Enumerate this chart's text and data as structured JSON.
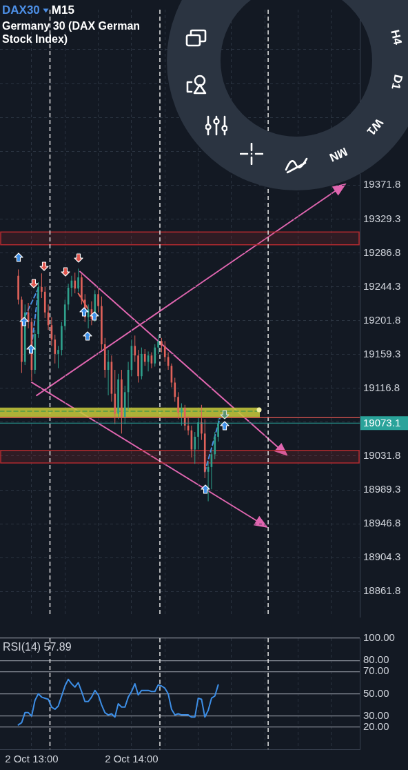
{
  "chart_data": [
    {
      "type": "candlestick",
      "title": "DAX30",
      "subtitle": "Germany 30 (DAX German Stock Index)",
      "annotations": [
        "M15",
        "H4",
        "D1",
        "W1",
        "MN"
      ],
      "series": [
        {
          "type": "candlestick",
          "x": [
            "--10-02T12:52",
            "--10-02T12:54",
            "--10-02T12:56",
            "--10-02T12:58",
            "--10-02T13:00",
            "--10-02T13:02",
            "--10-02T13:04",
            "--10-02T13:06",
            "--10-02T13:08",
            "--10-02T13:10",
            "--10-02T13:12",
            "--10-02T13:14",
            "--10-02T13:16",
            "--10-02T13:18",
            "--10-02T13:20",
            "--10-02T13:22",
            "--10-02T13:24",
            "--10-02T13:26",
            "--10-02T13:28",
            "--10-02T13:30",
            "--10-02T13:32",
            "--10-02T13:34",
            "--10-02T13:36",
            "--10-02T13:38",
            "--10-02T13:40",
            "--10-02T13:42",
            "--10-02T13:44",
            "--10-02T13:46",
            "--10-02T13:48",
            "--10-02T13:50",
            "--10-02T13:52",
            "--10-02T13:54",
            "--10-02T13:56",
            "--10-02T13:58",
            "--10-02T14:00",
            "--10-02T14:02",
            "--10-02T14:04",
            "--10-02T14:06",
            "--10-02T14:08",
            "--10-02T14:10",
            "--10-02T14:12",
            "--10-02T14:14",
            "--10-02T14:16",
            "--10-02T14:18",
            "--10-02T14:20",
            "--10-02T14:22",
            "--10-02T14:24",
            "--10-02T14:26",
            "--10-02T14:28",
            "--10-02T14:30",
            "--10-02T14:32",
            "--10-02T14:34",
            "--10-02T14:36",
            "--10-02T14:38",
            "--10-02T14:40",
            "--10-02T14:42",
            "--10-02T14:44",
            "--10-02T14:46",
            "--10-02T14:48",
            "--10-02T14:50",
            "--10-02T14:52"
          ],
          "ohlc": [
            [
              19258,
              19266,
              19222,
              19228
            ],
            [
              19228,
              19232,
              19136,
              19150
            ],
            [
              19150,
              19222,
              19146,
              19212
            ],
            [
              19212,
              19224,
              19192,
              19200
            ],
            [
              19200,
              19205,
              19126,
              19140
            ],
            [
              19140,
              19190,
              19135,
              19185
            ],
            [
              19185,
              19250,
              19180,
              19244
            ],
            [
              19244,
              19261,
              19230,
              19238
            ],
            [
              19238,
              19244,
              19205,
              19212
            ],
            [
              19212,
              19222,
              19190,
              19196
            ],
            [
              19196,
              19206,
              19170,
              19178
            ],
            [
              19178,
              19184,
              19148,
              19160
            ],
            [
              19160,
              19170,
              19142,
              19165
            ],
            [
              19165,
              19200,
              19158,
              19195
            ],
            [
              19195,
              19228,
              19190,
              19222
            ],
            [
              19222,
              19248,
              19215,
              19243
            ],
            [
              19243,
              19258,
              19232,
              19252
            ],
            [
              19252,
              19262,
              19236,
              19242
            ],
            [
              19242,
              19267,
              19238,
              19256
            ],
            [
              19256,
              19260,
              19222,
              19228
            ],
            [
              19228,
              19235,
              19200,
              19206
            ],
            [
              19206,
              19222,
              19192,
              19216
            ],
            [
              19216,
              19226,
              19196,
              19204
            ],
            [
              19204,
              19240,
              19200,
              19235
            ],
            [
              19235,
              19242,
              19212,
              19220
            ],
            [
              19220,
              19232,
              19165,
              19172
            ],
            [
              19172,
              19180,
              19130,
              19140
            ],
            [
              19140,
              19165,
              19108,
              19150
            ],
            [
              19150,
              19158,
              19100,
              19110
            ],
            [
              19110,
              19140,
              19072,
              19085
            ],
            [
              19085,
              19135,
              19078,
              19128
            ],
            [
              19128,
              19140,
              19060,
              19080
            ],
            [
              19080,
              19120,
              19072,
              19112
            ],
            [
              19112,
              19150,
              19090,
              19140
            ],
            [
              19140,
              19178,
              19132,
              19170
            ],
            [
              19170,
              19183,
              19150,
              19158
            ],
            [
              19158,
              19165,
              19124,
              19132
            ],
            [
              19132,
              19168,
              19128,
              19160
            ],
            [
              19160,
              19166,
              19145,
              19150
            ],
            [
              19150,
              19163,
              19138,
              19158
            ],
            [
              19158,
              19162,
              19142,
              19148
            ],
            [
              19148,
              19172,
              19144,
              19168
            ],
            [
              19168,
              19184,
              19160,
              19176
            ],
            [
              19176,
              19180,
              19162,
              19170
            ],
            [
              19170,
              19176,
              19150,
              19156
            ],
            [
              19156,
              19162,
              19140,
              19145
            ],
            [
              19145,
              19148,
              19118,
              19124
            ],
            [
              19124,
              19130,
              19100,
              19106
            ],
            [
              19106,
              19112,
              19078,
              19086
            ],
            [
              19086,
              19098,
              19070,
              19092
            ],
            [
              19092,
              19096,
              19064,
              19070
            ],
            [
              19070,
              19082,
              19058,
              19064
            ],
            [
              19064,
              19070,
              19030,
              19040
            ],
            [
              19040,
              19062,
              19022,
              19056
            ],
            [
              19056,
              19080,
              19040,
              19074
            ],
            [
              19074,
              19096,
              19052,
              19060
            ],
            [
              19060,
              19078,
              19004,
              19012
            ],
            [
              19012,
              19025,
              18975,
              19018
            ],
            [
              19018,
              19040,
              18990,
              19034
            ],
            [
              19034,
              19062,
              19028,
              19056
            ],
            [
              19056,
              19080,
              19050,
              19073.1
            ]
          ],
          "colors": [
            "#e0625a",
            "#e0625a",
            "#2fa08c",
            "#e0625a",
            "#e0625a",
            "#2fa08c",
            "#2fa08c",
            "#e0625a",
            "#e0625a",
            "#e0625a",
            "#e0625a",
            "#e0625a",
            "#2fa08c",
            "#2fa08c",
            "#2fa08c",
            "#2fa08c",
            "#2fa08c",
            "#e0625a",
            "#2fa08c",
            "#e0625a",
            "#e0625a",
            "#2fa08c",
            "#e0625a",
            "#2fa08c",
            "#e0625a",
            "#e0625a",
            "#e0625a",
            "#2fa08c",
            "#e0625a",
            "#e0625a",
            "#2fa08c",
            "#e0625a",
            "#2fa08c",
            "#2fa08c",
            "#2fa08c",
            "#e0625a",
            "#e0625a",
            "#2fa08c",
            "#e0625a",
            "#2fa08c",
            "#e0625a",
            "#2fa08c",
            "#2fa08c",
            "#e0625a",
            "#e0625a",
            "#e0625a",
            "#e0625a",
            "#e0625a",
            "#e0625a",
            "#2fa08c",
            "#e0625a",
            "#e0625a",
            "#e0625a",
            "#2fa08c",
            "#2fa08c",
            "#e0625a",
            "#e0625a",
            "#2fa08c",
            "#2fa08c",
            "#2fa08c",
            "#2fa08c"
          ]
        },
        {
          "type": "line",
          "color": "#4a90e2",
          "line_style": "dashed",
          "x": [
            "--10-02T12:56",
            "--10-02T13:04"
          ],
          "values": [
            19207,
            19242
          ]
        },
        {
          "type": "line",
          "color": "#4a90e2",
          "line_style": "dashed",
          "x": [
            "--10-02T13:00",
            "--10-02T13:04"
          ],
          "values": [
            19170,
            19239
          ]
        },
        {
          "type": "line",
          "color": "#e5675c",
          "line_style": "dashed",
          "x": [
            "--10-02T13:28",
            "--10-02T13:34"
          ],
          "values": [
            19236,
            19216
          ]
        },
        {
          "type": "line",
          "color": "#4a90e2",
          "line_style": "dashed",
          "x": [
            "--10-02T14:44",
            "--10-02T14:53"
          ],
          "values": [
            19012,
            19079
          ]
        },
        {
          "type": "line",
          "color": "#4f9a48",
          "line_style": "dashed",
          "x": [
            "--10-02T12:41",
            "--10-02T15:17"
          ],
          "values": [
            19088,
            19088
          ],
          "lower": [
            19080.5,
            19080.5
          ],
          "upper": [
            19092.5,
            19092.5
          ]
        }
      ],
      "xlim": [
        "--10-02T12:41",
        "--10-02T16:17"
      ],
      "xticks": [
        {
          "value": "--10-02T13:00",
          "label": null
        },
        {
          "value": "--10-02T13:20",
          "label": null
        },
        {
          "value": "--10-02T13:40",
          "label": null
        },
        {
          "value": "--10-02T14:00",
          "label": null
        },
        {
          "value": "--10-02T14:20",
          "label": null
        },
        {
          "value": "--10-02T14:40",
          "label": null
        },
        {
          "value": "--10-02T15:00",
          "label": null
        },
        {
          "value": "--10-02T15:20",
          "label": null
        },
        {
          "value": "--10-02T15:40",
          "label": null
        },
        {
          "value": "--10-02T16:00",
          "label": null
        }
      ],
      "ylim": [
        18830,
        19592
      ],
      "yticks": [
        18861.8,
        18904.3,
        18946.8,
        18989.3,
        19031.8,
        {
          "value": 19074.3,
          "label": null
        },
        19116.8,
        19159.3,
        19201.8,
        19244.3,
        19286.8,
        19329.3,
        19371.8,
        {
          "value": 19414.3,
          "label": null
        },
        {
          "value": 19456.8,
          "label": null
        },
        {
          "value": 19499.3,
          "label": null
        },
        {
          "value": 19541.8,
          "label": null
        }
      ],
      "tick_labels": "y",
      "grid": true,
      "ref_lines": [
        {
          "axis": "x",
          "value": "--10-02T13:11",
          "color": "#e8e8e8",
          "line_style": "dashed"
        },
        {
          "axis": "x",
          "value": "--10-02T14:17",
          "color": "#e8e8e8",
          "line_style": "dashed"
        },
        {
          "axis": "x",
          "value": "--10-02T15:22",
          "color": "#e8e8e8",
          "line_style": "dashed"
        },
        {
          "axis": "y",
          "value": 19080,
          "color": "#d9534f"
        },
        {
          "axis": "y",
          "value": 19073.1,
          "label": "19073.1",
          "color": "#2aa39a"
        }
      ],
      "bands": [
        {
          "axis": "y",
          "from": 19023,
          "to": 19039,
          "color": "#b02a2f"
        },
        {
          "axis": "y",
          "from": 19297,
          "to": 19313,
          "color": "#b02a2f"
        }
      ]
    },
    {
      "type": "line",
      "title": "RSI(14) 57.89",
      "x": [
        "--10-02T12:52",
        "--10-02T12:54",
        "--10-02T12:56",
        "--10-02T12:58",
        "--10-02T13:00",
        "--10-02T13:02",
        "--10-02T13:04",
        "--10-02T13:06",
        "--10-02T13:08",
        "--10-02T13:10",
        "--10-02T13:12",
        "--10-02T13:14",
        "--10-02T13:16",
        "--10-02T13:18",
        "--10-02T13:20",
        "--10-02T13:22",
        "--10-02T13:24",
        "--10-02T13:26",
        "--10-02T13:28",
        "--10-02T13:30",
        "--10-02T13:32",
        "--10-02T13:34",
        "--10-02T13:36",
        "--10-02T13:38",
        "--10-02T13:40",
        "--10-02T13:42",
        "--10-02T13:44",
        "--10-02T13:46",
        "--10-02T13:48",
        "--10-02T13:50",
        "--10-02T13:52",
        "--10-02T13:54",
        "--10-02T13:56",
        "--10-02T13:58",
        "--10-02T14:00",
        "--10-02T14:02",
        "--10-02T14:04",
        "--10-02T14:06",
        "--10-02T14:08",
        "--10-02T14:10",
        "--10-02T14:12",
        "--10-02T14:14",
        "--10-02T14:16",
        "--10-02T14:18",
        "--10-02T14:20",
        "--10-02T14:22",
        "--10-02T14:24",
        "--10-02T14:26",
        "--10-02T14:28",
        "--10-02T14:30",
        "--10-02T14:32",
        "--10-02T14:34",
        "--10-02T14:36",
        "--10-02T14:38",
        "--10-02T14:40",
        "--10-02T14:42",
        "--10-02T14:44",
        "--10-02T14:46",
        "--10-02T14:48",
        "--10-02T14:50",
        "--10-02T14:52"
      ],
      "values": [
        22,
        24,
        33,
        33,
        30,
        44,
        50,
        47,
        46,
        45,
        38,
        36,
        39,
        48,
        57,
        63,
        59,
        56,
        60,
        52,
        43,
        43,
        47,
        53,
        49,
        40,
        33,
        31,
        32,
        29,
        41,
        38,
        38,
        47,
        52,
        59,
        49,
        53,
        53,
        53,
        52,
        52,
        58,
        57,
        55,
        50,
        36,
        31,
        32,
        31,
        31,
        31,
        29,
        29,
        46,
        45,
        29,
        35,
        46,
        48,
        58
      ],
      "color": "#3d8ee6",
      "xlim": [
        "--10-02T12:41",
        "--10-02T16:17"
      ],
      "xticks": [
        {
          "value": "--10-02T13:00",
          "label": "2 Oct 13:00"
        },
        {
          "value": "--10-02T13:20",
          "label": null
        },
        {
          "value": "--10-02T13:40",
          "label": null
        },
        {
          "value": "--10-02T14:00",
          "label": "2 Oct 14:00"
        },
        {
          "value": "--10-02T14:20",
          "label": null
        },
        {
          "value": "--10-02T14:40",
          "label": null
        },
        {
          "value": "--10-02T15:00",
          "label": null
        },
        {
          "value": "--10-02T15:20",
          "label": null
        },
        {
          "value": "--10-02T15:40",
          "label": null
        },
        {
          "value": "--10-02T16:00",
          "label": null
        }
      ],
      "ylim": [
        0,
        100
      ],
      "yticks": [
        {
          "value": 100,
          "label": "100.00"
        },
        {
          "value": 80,
          "label": "80.00"
        },
        {
          "value": 70,
          "label": "70.00"
        },
        {
          "value": 50,
          "label": "50.00"
        },
        {
          "value": 30,
          "label": "30.00"
        },
        {
          "value": 20,
          "label": "20.00"
        }
      ],
      "grid": true,
      "ref_lines": [
        {
          "axis": "x",
          "value": "--10-02T13:11",
          "color": "#e8e8e8",
          "line_style": "dashed"
        },
        {
          "axis": "x",
          "value": "--10-02T14:17",
          "color": "#e8e8e8",
          "line_style": "dashed"
        },
        {
          "axis": "x",
          "value": "--10-02T15:22",
          "color": "#e8e8e8",
          "line_style": "dashed"
        }
      ]
    }
  ]
}
